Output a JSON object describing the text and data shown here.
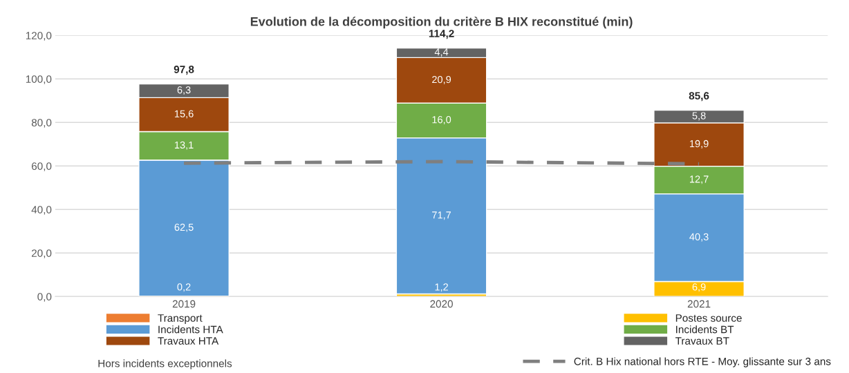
{
  "chart_data": {
    "type": "bar",
    "title": "Evolution de la décomposition du critère B HIX reconstitué (min)",
    "categories": [
      "2019",
      "2020",
      "2021"
    ],
    "stacked": true,
    "series": [
      {
        "name": "Transport",
        "color": "#ed7d31",
        "values": [
          0,
          0,
          0
        ]
      },
      {
        "name": "Postes source",
        "color": "#ffc000",
        "values": [
          0.2,
          1.2,
          6.9
        ],
        "value_labels": [
          "0,2",
          "1,2",
          "6,9"
        ]
      },
      {
        "name": "Incidents HTA",
        "color": "#5b9bd5",
        "values": [
          62.5,
          71.7,
          40.3
        ],
        "value_labels": [
          "62,5",
          "71,7",
          "40,3"
        ]
      },
      {
        "name": "Incidents BT",
        "color": "#70ad47",
        "values": [
          13.1,
          16.0,
          12.7
        ],
        "value_labels": [
          "13,1",
          "16,0",
          "12,7"
        ]
      },
      {
        "name": "Travaux HTA",
        "color": "#9e480e",
        "values": [
          15.6,
          20.9,
          19.9
        ],
        "value_labels": [
          "15,6",
          "20,9",
          "19,9"
        ]
      },
      {
        "name": "Travaux BT",
        "color": "#636363",
        "values": [
          6.3,
          4.4,
          5.8
        ],
        "value_labels": [
          "6,3",
          "4,4",
          "5,8"
        ]
      },
      {
        "name": "Crit. B Hix national hors RTE - Moy. glissante sur 3 ans",
        "type": "line",
        "color": "#7f7f7f",
        "line_style": "dashed",
        "values": [
          61.3,
          62.0,
          61.0
        ]
      }
    ],
    "totals": [
      "97,8",
      "114,2",
      "85,6"
    ],
    "ylim": [
      0,
      120
    ],
    "yticks": [
      {
        "value": 0,
        "label": "0,0"
      },
      {
        "value": 20,
        "label": "20,0"
      },
      {
        "value": 40,
        "label": "40,0"
      },
      {
        "value": 60,
        "label": "60,0"
      },
      {
        "value": 80,
        "label": "80,0"
      },
      {
        "value": 100,
        "label": "100,0"
      },
      {
        "value": 120,
        "label": "120,0"
      }
    ],
    "grid": "y",
    "legend": "bottom",
    "annotations": [
      "Hors incidents exceptionnels"
    ]
  }
}
